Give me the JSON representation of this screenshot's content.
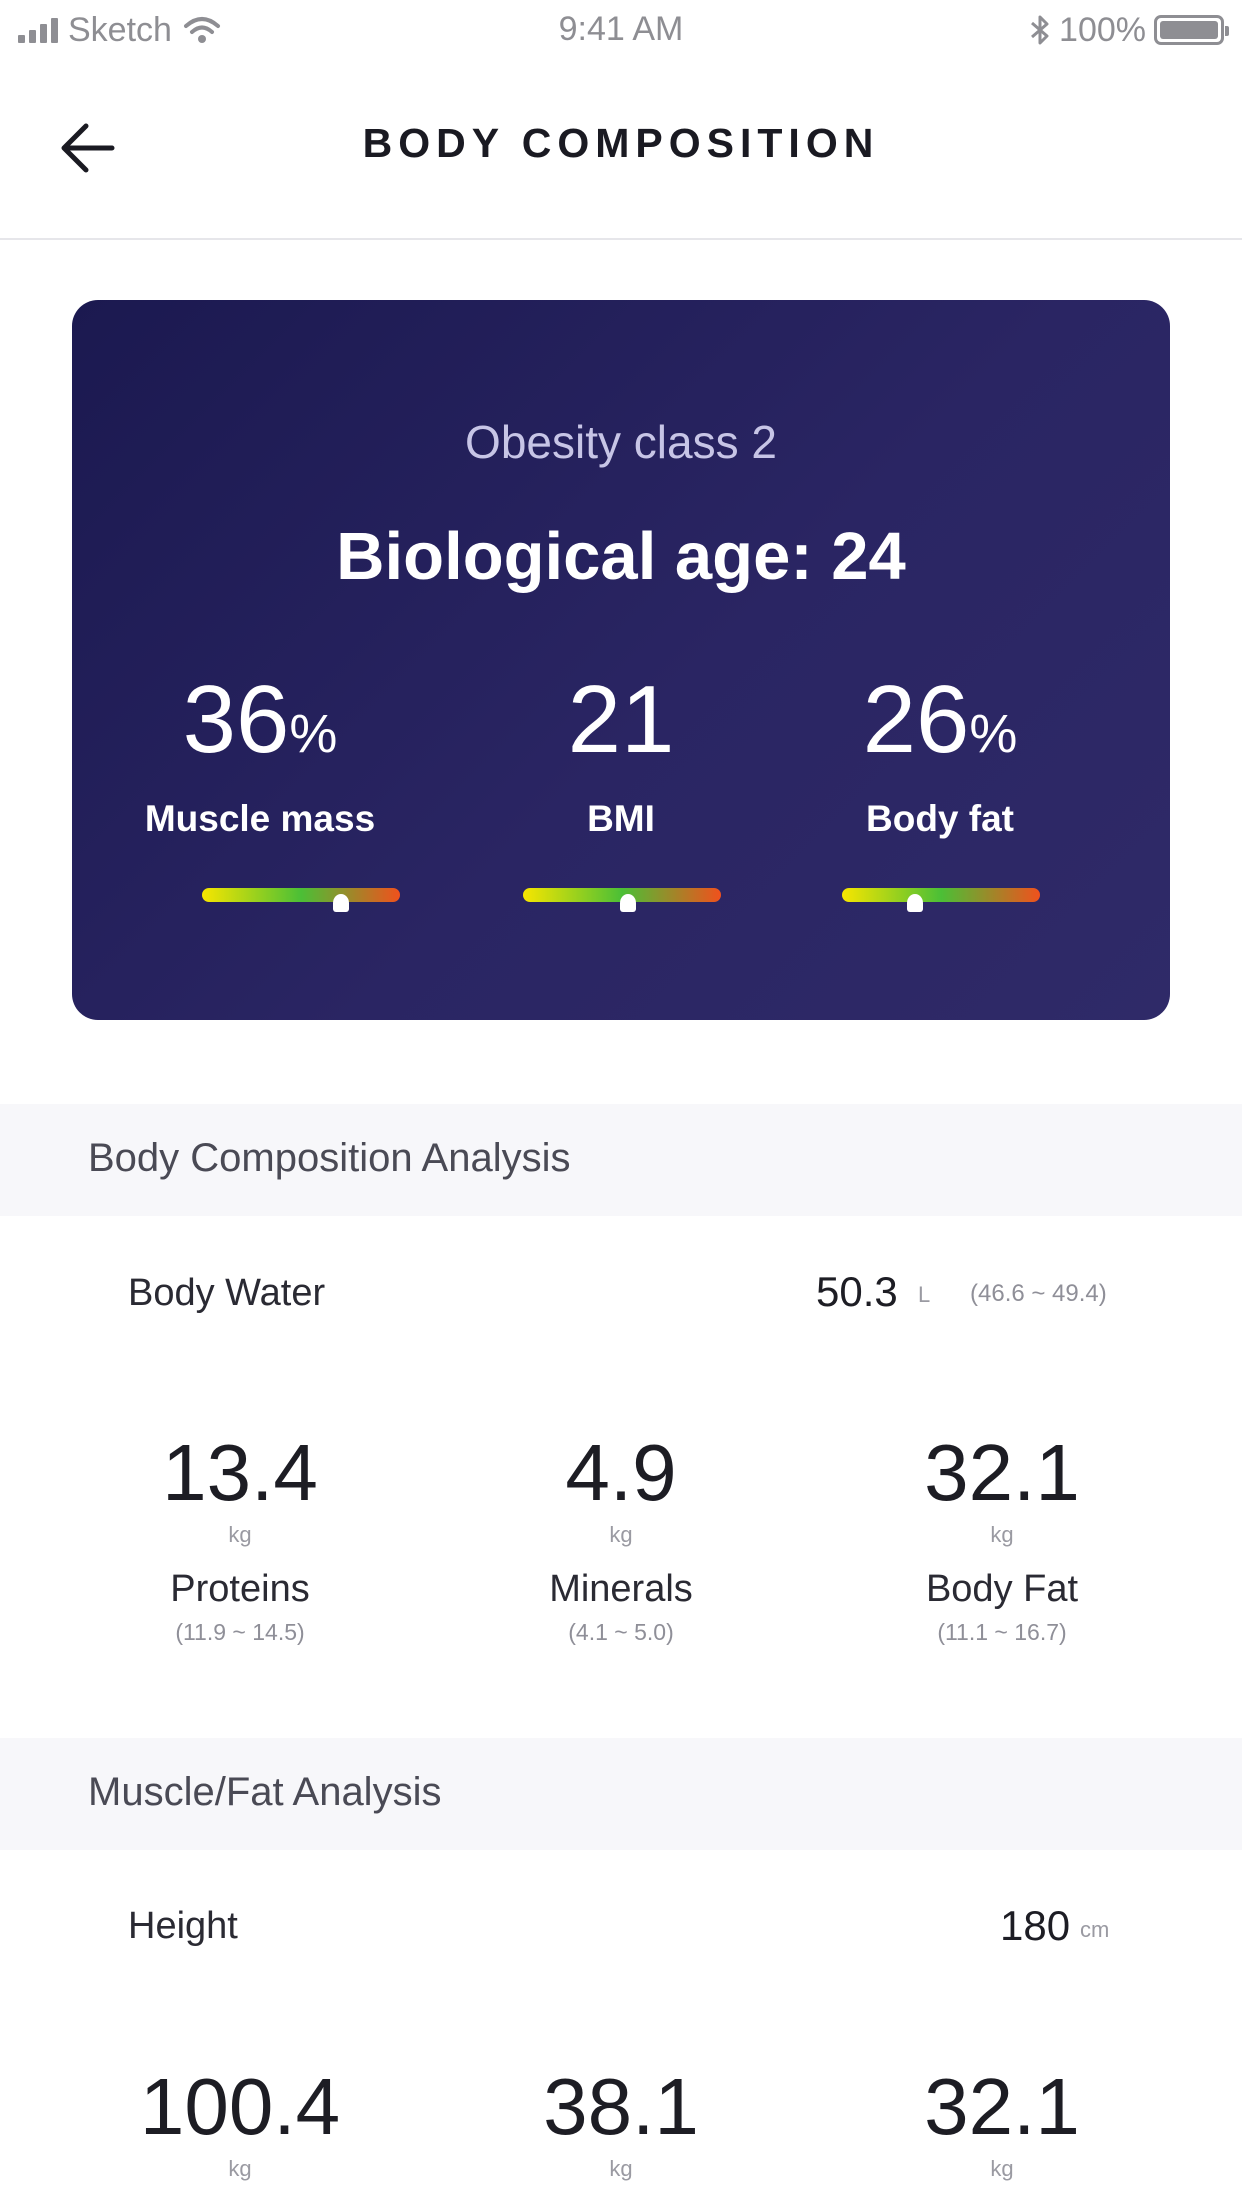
{
  "status_bar": {
    "carrier": "Sketch",
    "time": "9:41 AM",
    "battery": "100%"
  },
  "nav": {
    "title": "BODY COMPOSITION"
  },
  "hero": {
    "classification": "Obesity class 2",
    "biological_age": "Biological age: 24",
    "metrics": [
      {
        "value": "36",
        "unit": "%",
        "label": "Muscle mass",
        "level": 0.7
      },
      {
        "value": "21",
        "unit": "",
        "label": "BMI",
        "level": 0.53
      },
      {
        "value": "26",
        "unit": "%",
        "label": "Body fat",
        "level": 0.37
      }
    ],
    "gauge_colors": [
      "#f7e600",
      "#4bbf36",
      "#f0511d"
    ],
    "card_color": "#231f5a"
  },
  "body_composition": {
    "title": "Body Composition Analysis",
    "body_water": {
      "label": "Body Water",
      "value": "50.3",
      "unit": "L",
      "range": "(46.6 ~ 49.4)"
    },
    "stats": [
      {
        "value": "13.4",
        "unit": "kg",
        "label": "Proteins",
        "range": "(11.9 ~ 14.5)"
      },
      {
        "value": "4.9",
        "unit": "kg",
        "label": "Minerals",
        "range": "(4.1 ~ 5.0)"
      },
      {
        "value": "32.1",
        "unit": "kg",
        "label": "Body Fat",
        "range": "(11.1 ~ 16.7)"
      }
    ]
  },
  "muscle_fat": {
    "title": "Muscle/Fat Analysis",
    "height": {
      "label": "Height",
      "value": "180",
      "unit": "cm"
    },
    "stats": [
      {
        "value": "100.4",
        "unit": "kg"
      },
      {
        "value": "38.1",
        "unit": "kg"
      },
      {
        "value": "32.1",
        "unit": "kg"
      }
    ]
  }
}
